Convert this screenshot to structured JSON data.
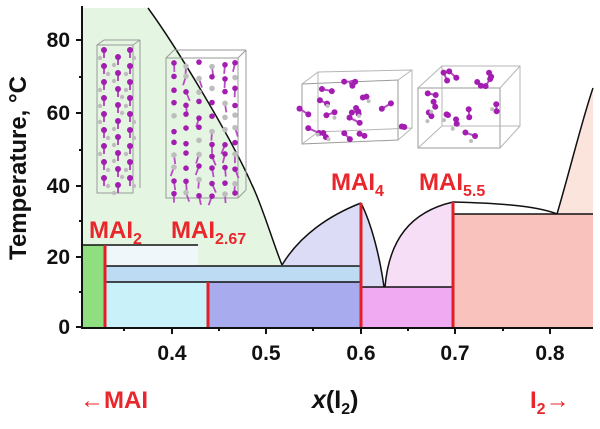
{
  "diagram": {
    "y_axis": {
      "label": "Temperature, °C",
      "ticks": [
        "0",
        "20",
        "40",
        "60",
        "80"
      ]
    },
    "x_axis": {
      "label_italic": "x",
      "label_rest": "(I",
      "label_sub": "2",
      "label_close": ")",
      "ticks": [
        "0.4",
        "0.5",
        "0.6",
        "0.7",
        "0.8"
      ]
    },
    "ends": {
      "left": {
        "arrow": "←",
        "text": "MAI"
      },
      "right": {
        "text": "I",
        "sub": "2",
        "arrow": "→"
      }
    },
    "phases": [
      {
        "base": "MAI",
        "sub": "2"
      },
      {
        "base": "MAI",
        "sub": "2.67"
      },
      {
        "base": "MAI",
        "sub": "4"
      },
      {
        "base": "MAI",
        "sub": "5.5"
      }
    ],
    "colors": {
      "label_red": "#e8262b",
      "boundary_red": "#e41e26",
      "liquid_green": "#e4f6e1",
      "green_solid": "#8fde7f",
      "cyan": "#c8f1fa",
      "light_blue": "#bddcf4",
      "blue_purple": "#a8acef",
      "lavender": "#dcdcf6",
      "pink_liquid": "#f6dff6",
      "magenta": "#efaaf2",
      "salmon": "#f9c2bc",
      "light_salmon": "#fbe4dc"
    }
  }
}
